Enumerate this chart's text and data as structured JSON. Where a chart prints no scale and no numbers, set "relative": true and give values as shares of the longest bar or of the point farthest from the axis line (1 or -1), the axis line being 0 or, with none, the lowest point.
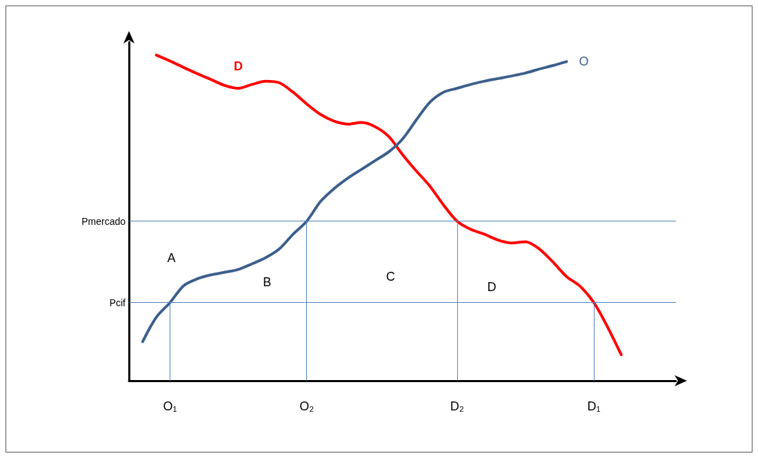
{
  "chart_data": {
    "type": "line",
    "relative": true,
    "legend": false,
    "grid": false,
    "marker": "none",
    "line_style": "solid",
    "categories": [
      null,
      null,
      null,
      "O₁",
      null,
      null,
      null,
      null,
      null,
      null,
      null,
      null,
      null,
      "O₂",
      null,
      null,
      null,
      null,
      null,
      null,
      null,
      null,
      null,
      null,
      "D₂",
      null,
      null,
      null,
      null,
      null,
      null,
      null,
      null,
      null,
      "D₁",
      null,
      null,
      null,
      null,
      null,
      null
    ],
    "series": [
      {
        "name": "D",
        "color": "#ff0000",
        "values": [
          null,
          null,
          1.0,
          0.982,
          0.962,
          0.943,
          0.925,
          0.907,
          0.898,
          0.91,
          0.92,
          0.915,
          0.886,
          0.85,
          0.818,
          0.797,
          0.788,
          0.793,
          0.78,
          0.75,
          0.695,
          0.645,
          0.598,
          0.54,
          0.49,
          0.465,
          0.45,
          0.432,
          0.423,
          0.427,
          0.405,
          0.365,
          0.32,
          0.29,
          0.24,
          0.165,
          0.08,
          null,
          null,
          null,
          null
        ]
      },
      {
        "name": "O",
        "color": "#3c5f8c",
        "values": [
          null,
          0.12,
          0.195,
          0.24,
          0.292,
          0.313,
          0.325,
          0.333,
          0.342,
          0.359,
          0.378,
          0.405,
          0.45,
          0.49,
          0.55,
          0.59,
          0.622,
          0.649,
          0.676,
          0.703,
          0.742,
          0.8,
          0.855,
          0.886,
          0.898,
          0.91,
          0.92,
          0.928,
          0.936,
          0.945,
          0.957,
          0.968,
          0.98,
          null,
          null,
          null,
          null,
          null,
          null,
          null,
          null
        ]
      }
    ],
    "ref_lines": [
      {
        "axis": "y",
        "value": 0.49,
        "label": "Pmercado",
        "color": "#4f81bd"
      },
      {
        "axis": "y",
        "value": 0.24,
        "label": "Pcif",
        "color": "#4f81bd"
      },
      {
        "axis": "x",
        "value": "O₁",
        "color": "#4f81bd"
      },
      {
        "axis": "x",
        "value": "O₂",
        "color": "#4f81bd"
      },
      {
        "axis": "x",
        "value": "D₂",
        "color": "#4f81bd"
      },
      {
        "axis": "x",
        "value": "D₁",
        "color": "#4f81bd"
      }
    ],
    "annotations": [
      "A",
      "B",
      "C",
      "D"
    ]
  }
}
